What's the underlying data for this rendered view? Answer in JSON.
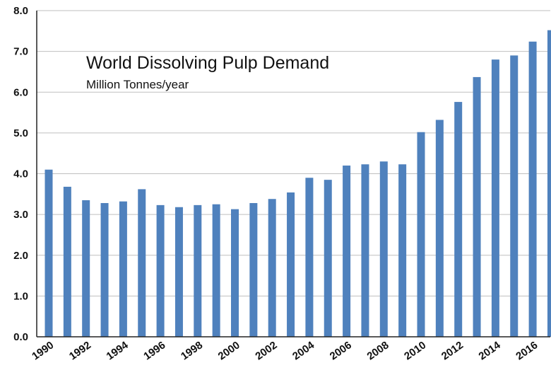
{
  "chart_data": {
    "type": "bar",
    "title": "World Dissolving Pulp Demand",
    "subtitle": "Million Tonnes/year",
    "xlabel": "",
    "ylabel": "",
    "ylim": [
      0,
      8
    ],
    "yticks": [
      "0.0",
      "1.0",
      "2.0",
      "3.0",
      "4.0",
      "5.0",
      "6.0",
      "7.0",
      "8.0"
    ],
    "grid": true,
    "bar_color": "#4f81bd",
    "categories": [
      "1990",
      "1991",
      "1992",
      "1993",
      "1994",
      "1995",
      "1996",
      "1997",
      "1998",
      "1999",
      "2000",
      "2001",
      "2002",
      "2003",
      "2004",
      "2005",
      "2006",
      "2007",
      "2008",
      "2009",
      "2010",
      "2011",
      "2012",
      "2013",
      "2014",
      "2015",
      "2016",
      "2017"
    ],
    "xtick_labels": [
      "1990",
      "1992",
      "1994",
      "1996",
      "1998",
      "2000",
      "2002",
      "2004",
      "2006",
      "2008",
      "2010",
      "2012",
      "2014",
      "2016"
    ],
    "values": [
      4.1,
      3.68,
      3.35,
      3.28,
      3.32,
      3.62,
      3.23,
      3.18,
      3.23,
      3.25,
      3.13,
      3.28,
      3.38,
      3.54,
      3.9,
      3.85,
      4.2,
      4.23,
      4.3,
      4.23,
      5.02,
      5.32,
      5.76,
      6.37,
      6.8,
      6.9,
      7.24,
      7.52
    ]
  }
}
